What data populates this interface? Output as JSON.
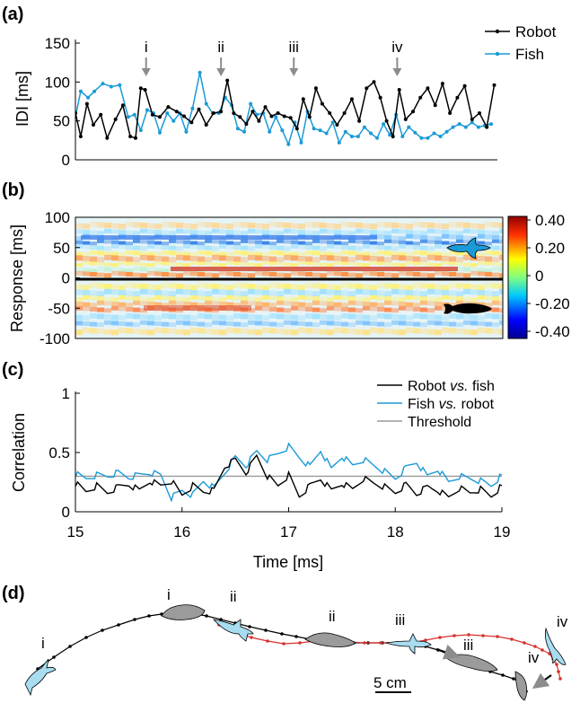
{
  "figure": {
    "panel_labels": [
      "(a)",
      "(b)",
      "(c)",
      "(d)"
    ],
    "colors": {
      "robot": "#000000",
      "fish": "#1a9ad6",
      "threshold": "#9a9a9a",
      "trajectory_red": "#d9302c",
      "fish_fill": "#a8dcf0",
      "robot_fill": "#9b9b9b",
      "arrow": "#8c8c8c"
    }
  },
  "chart_data": [
    {
      "id": "a",
      "type": "line",
      "ylabel": "IDI [ms]",
      "xlabel": "",
      "xlim": [
        15,
        19
      ],
      "ylim": [
        0,
        150
      ],
      "yticks": [
        "0",
        "50",
        "100",
        "150"
      ],
      "event_markers": [
        {
          "label": "i",
          "x": 15.67
        },
        {
          "label": "ii",
          "x": 16.38
        },
        {
          "label": "iii",
          "x": 17.07
        },
        {
          "label": "iv",
          "x": 18.05
        }
      ],
      "legend": [
        {
          "name": "Robot",
          "color": "#000000"
        },
        {
          "name": "Fish",
          "color": "#1a9ad6"
        }
      ],
      "series": [
        {
          "name": "Robot",
          "color": "#000000",
          "marker": true,
          "x": [
            15.0,
            15.05,
            15.11,
            15.17,
            15.24,
            15.3,
            15.38,
            15.45,
            15.52,
            15.57,
            15.62,
            15.66,
            15.73,
            15.8,
            15.88,
            15.96,
            16.03,
            16.1,
            16.17,
            16.24,
            16.31,
            16.38,
            16.44,
            16.5,
            16.56,
            16.62,
            16.68,
            16.74,
            16.8,
            16.86,
            16.92,
            16.98,
            17.04,
            17.1,
            17.16,
            17.22,
            17.28,
            17.34,
            17.41,
            17.48,
            17.55,
            17.62,
            17.69,
            17.76,
            17.83,
            17.89,
            17.95,
            18.01,
            18.07,
            18.13,
            18.2,
            18.27,
            18.34,
            18.41,
            18.48,
            18.55,
            18.62,
            18.69,
            18.76,
            18.83,
            18.9,
            18.97
          ],
          "y": [
            60,
            30,
            72,
            45,
            58,
            28,
            52,
            70,
            30,
            28,
            92,
            90,
            58,
            55,
            68,
            62,
            56,
            48,
            65,
            45,
            60,
            62,
            102,
            60,
            55,
            46,
            62,
            50,
            68,
            56,
            60,
            56,
            54,
            40,
            78,
            55,
            92,
            72,
            60,
            45,
            60,
            78,
            50,
            92,
            100,
            80,
            50,
            30,
            90,
            52,
            62,
            80,
            92,
            70,
            98,
            60,
            80,
            95,
            52,
            60,
            42,
            96
          ]
        },
        {
          "name": "Fish",
          "color": "#1a9ad6",
          "marker": true,
          "x": [
            15.0,
            15.05,
            15.12,
            15.18,
            15.26,
            15.34,
            15.42,
            15.5,
            15.56,
            15.62,
            15.68,
            15.74,
            15.8,
            15.87,
            15.93,
            15.99,
            16.05,
            16.11,
            16.18,
            16.24,
            16.3,
            16.36,
            16.42,
            16.48,
            16.54,
            16.6,
            16.66,
            16.72,
            16.78,
            16.84,
            16.9,
            16.96,
            17.02,
            17.08,
            17.14,
            17.2,
            17.26,
            17.32,
            17.38,
            17.44,
            17.5,
            17.56,
            17.62,
            17.68,
            17.74,
            17.8,
            17.86,
            17.92,
            17.98,
            18.04,
            18.1,
            18.16,
            18.22,
            18.28,
            18.34,
            18.4,
            18.46,
            18.52,
            18.58,
            18.64,
            18.7,
            18.76,
            18.82,
            18.88,
            18.94
          ],
          "y": [
            55,
            88,
            80,
            88,
            98,
            94,
            96,
            55,
            58,
            38,
            64,
            60,
            35,
            60,
            50,
            60,
            36,
            66,
            112,
            72,
            60,
            60,
            80,
            70,
            40,
            36,
            72,
            58,
            60,
            36,
            55,
            38,
            20,
            48,
            22,
            62,
            40,
            38,
            34,
            48,
            22,
            36,
            30,
            30,
            42,
            34,
            28,
            46,
            32,
            58,
            30,
            42,
            35,
            28,
            28,
            34,
            30,
            36,
            42,
            46,
            42,
            48,
            42,
            44,
            46
          ]
        }
      ]
    },
    {
      "id": "b",
      "type": "heatmap",
      "ylabel": "Response [ms]",
      "ylim": [
        -100,
        100
      ],
      "yticks": [
        "100",
        "50",
        "0",
        "-50",
        "-100"
      ],
      "colorbar_ticks": [
        "0.40",
        "0.20",
        "0",
        "-0.20",
        "-0.40"
      ],
      "colorbar_range": [
        -0.4,
        0.4
      ]
    },
    {
      "id": "c",
      "type": "line",
      "xlabel": "Time [ms]",
      "ylabel": "Correlation",
      "xlim": [
        15,
        19
      ],
      "ylim": [
        0,
        1
      ],
      "xticks": [
        "15",
        "16",
        "17",
        "18",
        "19"
      ],
      "yticks": [
        "0",
        "0.5",
        "1"
      ],
      "legend": [
        {
          "prefix": "Robot ",
          "italic": "vs.",
          "suffix": " fish",
          "color": "#000000"
        },
        {
          "prefix": "Fish ",
          "italic": "vs.",
          "suffix": " robot",
          "color": "#1a9ad6"
        },
        {
          "prefix": "Threshold",
          "italic": "",
          "suffix": "",
          "color": "#9a9a9a"
        }
      ],
      "series": [
        {
          "name": "Robot vs. fish",
          "color": "#000000",
          "x": [
            15.0,
            15.1,
            15.2,
            15.3,
            15.4,
            15.5,
            15.6,
            15.7,
            15.8,
            15.9,
            16.0,
            16.1,
            16.2,
            16.3,
            16.4,
            16.5,
            16.6,
            16.7,
            16.8,
            16.9,
            17.0,
            17.1,
            17.2,
            17.3,
            17.4,
            17.5,
            17.6,
            17.7,
            17.8,
            17.9,
            18.0,
            18.1,
            18.2,
            18.3,
            18.4,
            18.5,
            18.6,
            18.7,
            18.8,
            18.9,
            19.0
          ],
          "y": [
            0.24,
            0.17,
            0.22,
            0.16,
            0.21,
            0.23,
            0.18,
            0.26,
            0.22,
            0.26,
            0.14,
            0.22,
            0.17,
            0.18,
            0.38,
            0.44,
            0.33,
            0.47,
            0.3,
            0.22,
            0.31,
            0.13,
            0.22,
            0.28,
            0.18,
            0.24,
            0.19,
            0.28,
            0.24,
            0.21,
            0.16,
            0.23,
            0.15,
            0.21,
            0.18,
            0.12,
            0.2,
            0.16,
            0.19,
            0.13,
            0.22
          ]
        },
        {
          "name": "Fish vs. robot",
          "color": "#1a9ad6",
          "x": [
            15.0,
            15.1,
            15.2,
            15.3,
            15.4,
            15.5,
            15.6,
            15.7,
            15.8,
            15.9,
            16.0,
            16.1,
            16.2,
            16.3,
            16.4,
            16.5,
            16.6,
            16.7,
            16.8,
            16.9,
            17.0,
            17.1,
            17.2,
            17.3,
            17.4,
            17.5,
            17.6,
            17.7,
            17.8,
            17.9,
            18.0,
            18.1,
            18.2,
            18.3,
            18.4,
            18.5,
            18.6,
            18.7,
            18.8,
            18.9,
            19.0
          ],
          "y": [
            0.32,
            0.28,
            0.31,
            0.3,
            0.33,
            0.29,
            0.31,
            0.33,
            0.31,
            0.12,
            0.18,
            0.14,
            0.26,
            0.2,
            0.33,
            0.46,
            0.39,
            0.51,
            0.44,
            0.49,
            0.55,
            0.46,
            0.38,
            0.52,
            0.36,
            0.47,
            0.39,
            0.44,
            0.39,
            0.34,
            0.28,
            0.37,
            0.42,
            0.3,
            0.36,
            0.25,
            0.3,
            0.28,
            0.26,
            0.22,
            0.31
          ]
        },
        {
          "name": "Threshold",
          "color": "#9a9a9a",
          "x": [
            15,
            19
          ],
          "y": [
            0.3,
            0.3
          ]
        }
      ]
    }
  ],
  "panel_d": {
    "event_labels_robot": [
      "i",
      "ii",
      "iii",
      "iv"
    ],
    "event_labels_fish": [
      "i",
      "ii",
      "iii",
      "iv"
    ],
    "scale_bar_label": "5 cm"
  }
}
